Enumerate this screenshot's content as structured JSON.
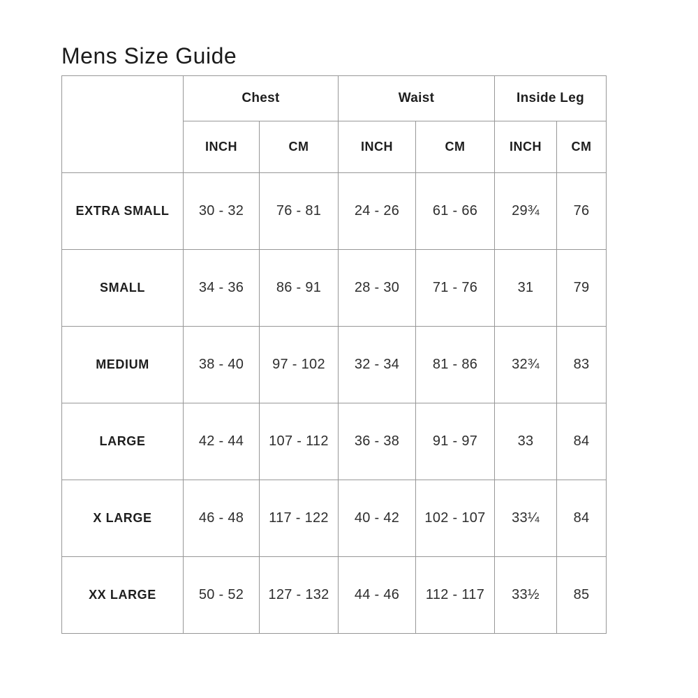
{
  "page": {
    "title": "Mens Size Guide"
  },
  "table": {
    "groups": [
      {
        "label": "Chest"
      },
      {
        "label": "Waist"
      },
      {
        "label": "Inside Leg"
      }
    ],
    "unit_headers": [
      "INCH",
      "CM",
      "INCH",
      "CM",
      "INCH",
      "CM"
    ],
    "rows": [
      {
        "label": "EXTRA SMALL",
        "values": [
          "30 - 32",
          "76 - 81",
          "24 - 26",
          "61 - 66",
          "29¾",
          "76"
        ]
      },
      {
        "label": "SMALL",
        "values": [
          "34 - 36",
          "86 - 91",
          "28 - 30",
          "71 - 76",
          "31",
          "79"
        ]
      },
      {
        "label": "MEDIUM",
        "values": [
          "38 - 40",
          "97 - 102",
          "32 - 34",
          "81 - 86",
          "32¾",
          "83"
        ]
      },
      {
        "label": "LARGE",
        "values": [
          "42 - 44",
          "107 - 112",
          "36 - 38",
          "91 - 97",
          "33",
          "84"
        ]
      },
      {
        "label": "X LARGE",
        "values": [
          "46 - 48",
          "117 - 122",
          "40 - 42",
          "102 - 107",
          "33¼",
          "84"
        ]
      },
      {
        "label": "XX LARGE",
        "values": [
          "50 - 52",
          "127 - 132",
          "44 - 46",
          "112 - 117",
          "33½",
          "85"
        ]
      }
    ]
  },
  "colors": {
    "border": "#979797",
    "heading_text": "#1e1e1e",
    "data_text": "#2e2e2e",
    "background": "#ffffff"
  }
}
